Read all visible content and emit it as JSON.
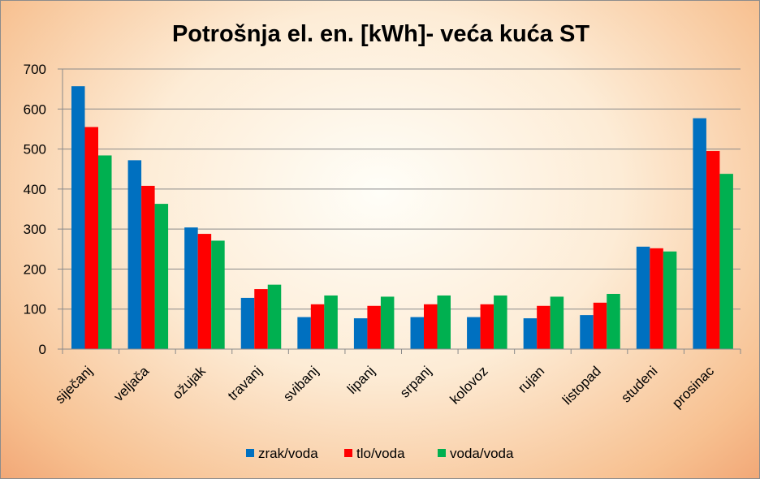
{
  "chart_data": {
    "type": "bar",
    "title": "Potrošnja el. en. [kWh]- veća kuća ST",
    "xlabel": "",
    "ylabel": "",
    "ylim": [
      0,
      700
    ],
    "yticks": [
      0,
      100,
      200,
      300,
      400,
      500,
      600,
      700
    ],
    "grid": true,
    "legend_position": "bottom",
    "categories": [
      "siječanj",
      "veljača",
      "ožujak",
      "travanj",
      "svibanj",
      "lipanj",
      "srpanj",
      "kolovoz",
      "rujan",
      "listopad",
      "studeni",
      "prosinac"
    ],
    "series": [
      {
        "name": "zrak/voda",
        "color": "#0070c0",
        "values": [
          657,
          472,
          304,
          128,
          80,
          77,
          80,
          80,
          77,
          85,
          256,
          577
        ]
      },
      {
        "name": "tlo/voda",
        "color": "#ff0000",
        "values": [
          555,
          408,
          288,
          150,
          112,
          108,
          112,
          112,
          108,
          116,
          252,
          495
        ]
      },
      {
        "name": "voda/voda",
        "color": "#00b050",
        "values": [
          484,
          363,
          271,
          161,
          134,
          131,
          134,
          134,
          131,
          138,
          244,
          438
        ]
      }
    ]
  }
}
